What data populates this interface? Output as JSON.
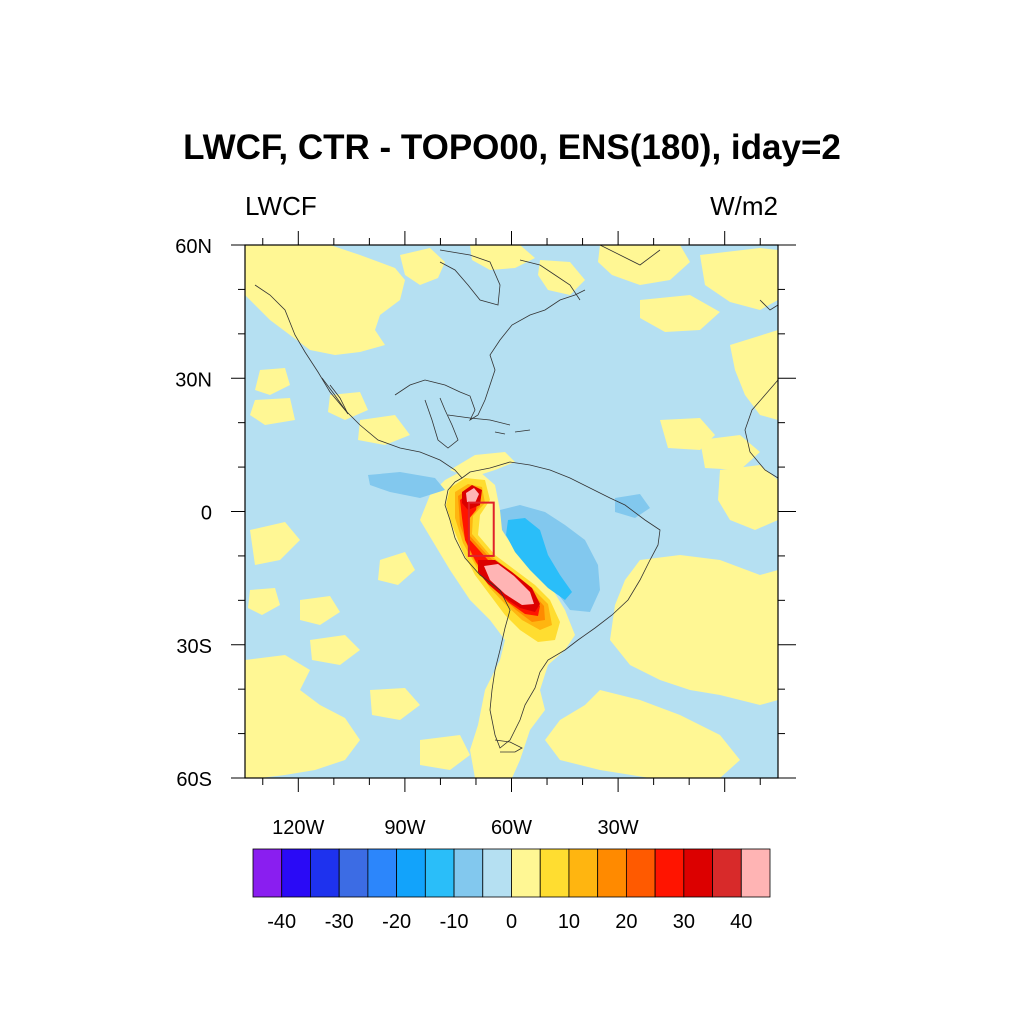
{
  "title": "LWCF, CTR - TOPO00, ENS(180), iday=2",
  "left_subtitle": "LWCF",
  "right_subtitle": "W/m2",
  "map": {
    "lon_range": [
      -135,
      15
    ],
    "lat_range": [
      -60,
      60
    ],
    "y_ticks": [
      {
        "lat": 60,
        "label": "60N"
      },
      {
        "lat": 30,
        "label": "30N"
      },
      {
        "lat": 0,
        "label": "0"
      },
      {
        "lat": -30,
        "label": "30S"
      },
      {
        "lat": -60,
        "label": "60S"
      }
    ],
    "x_ticks": [
      {
        "lon": -120,
        "label": "120W"
      },
      {
        "lon": -90,
        "label": "90W"
      },
      {
        "lon": -60,
        "label": "60W"
      },
      {
        "lon": -30,
        "label": "30W"
      }
    ],
    "box": {
      "lon_min": -72,
      "lon_max": -65,
      "lat_min": -10,
      "lat_max": 2,
      "color": "#e0202a"
    }
  },
  "colorbar": {
    "colors": [
      "#8a1ef0",
      "#2a0af6",
      "#1e32ee",
      "#3c6ce4",
      "#2c86fb",
      "#12a3fb",
      "#2abef9",
      "#82c8ee",
      "#b5e0f2",
      "#fff794",
      "#ffdd30",
      "#ffb510",
      "#ff8a00",
      "#ff5a00",
      "#ff1400",
      "#dc0000",
      "#d82a2a",
      "#ffb4b4"
    ],
    "labels": [
      "-40",
      "-30",
      "-20",
      "-10",
      "0",
      "10",
      "20",
      "30",
      "40"
    ]
  }
}
